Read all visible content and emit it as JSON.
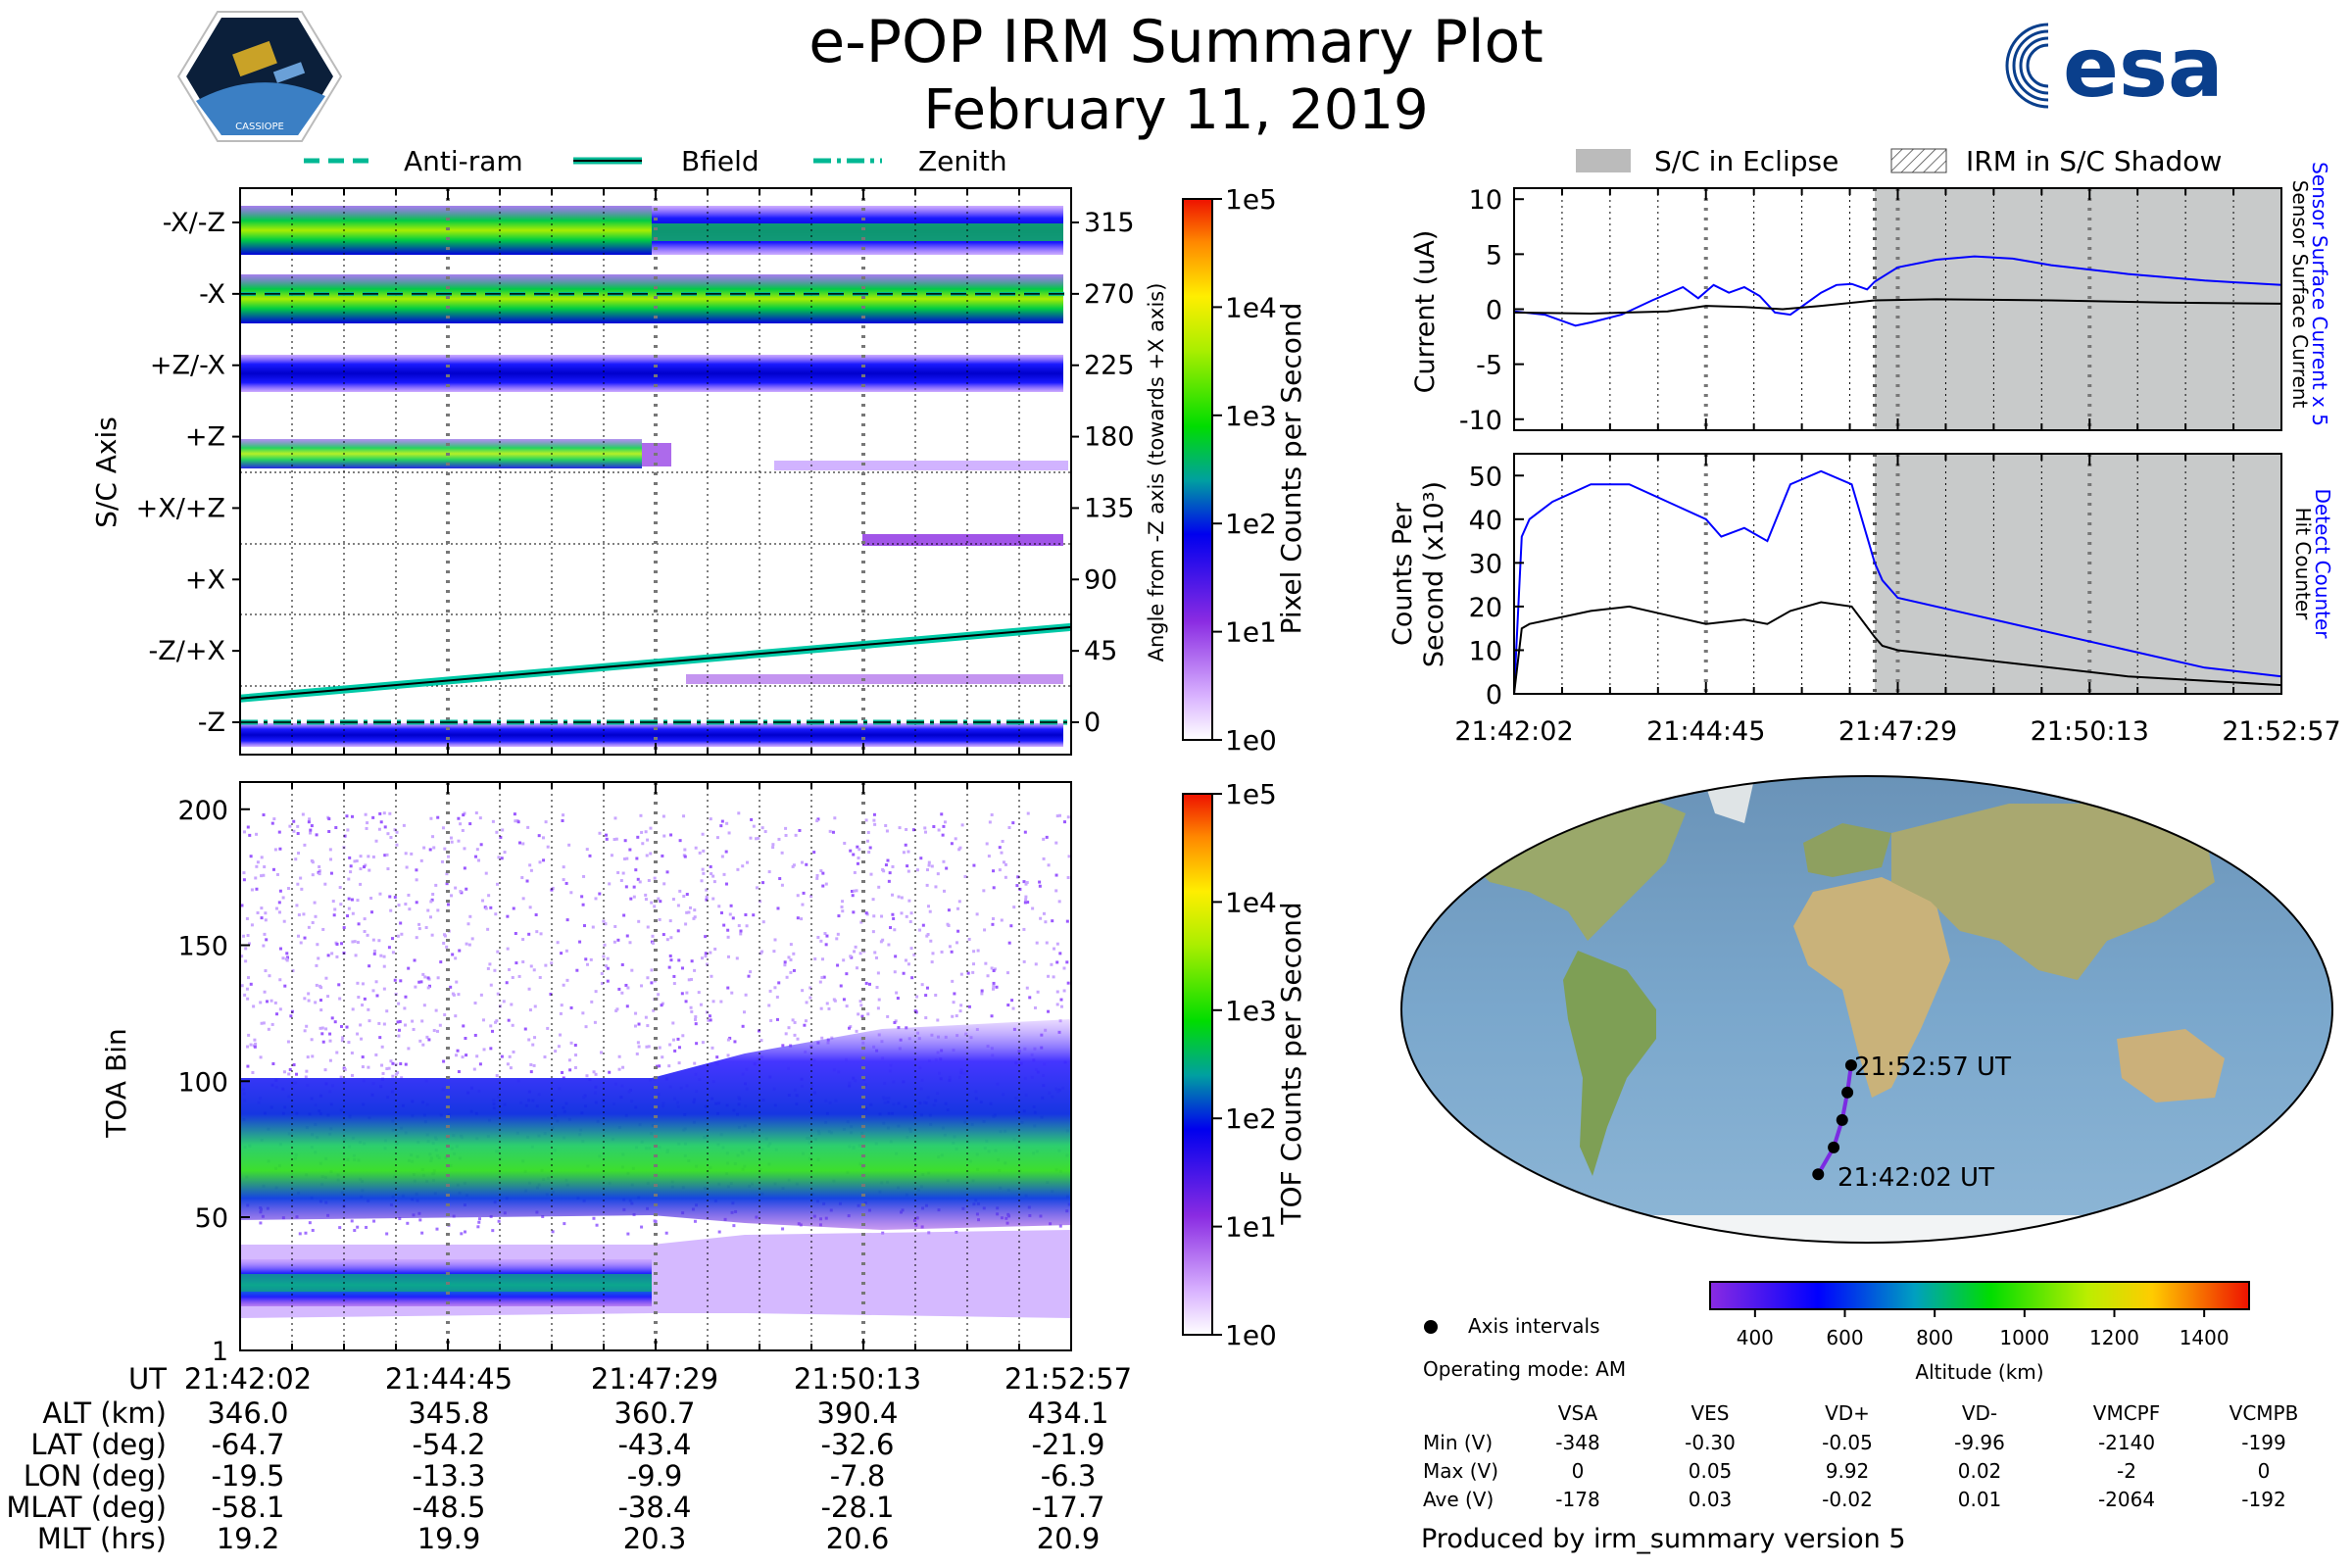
{
  "title": "e-POP IRM Summary Plot",
  "date": "February 11, 2019",
  "logos": {
    "mission": "CASSIOPE",
    "agency": "esa"
  },
  "legend_top_left": [
    {
      "label": "Anti-ram",
      "style": "dashed",
      "color": "#00b894"
    },
    {
      "label": "Bfield",
      "style": "solid",
      "color": "#00b894"
    },
    {
      "label": "Zenith",
      "style": "dashdot",
      "color": "#00b894"
    }
  ],
  "legend_top_right": [
    {
      "label": "S/C in Eclipse",
      "style": "gray-fill"
    },
    {
      "label": "IRM in S/C Shadow",
      "style": "hatch"
    }
  ],
  "time_ticks": [
    "21:42:02",
    "21:44:45",
    "21:47:29",
    "21:50:13",
    "21:52:57"
  ],
  "chart_data": [
    {
      "id": "sc-axis-spectrogram",
      "type": "heatmap",
      "ylabel": "S/C Axis",
      "y_categories": [
        "-X/-Z",
        "-X",
        "+Z/-X",
        "+Z",
        "+X/+Z",
        "+X",
        "-Z/+X",
        "-Z"
      ],
      "y2label": "Angle from -Z axis (towards +X axis)",
      "y2_ticks": [
        315,
        270,
        225,
        180,
        135,
        90,
        45,
        0
      ],
      "colorbar_label": "Pixel Counts per Second",
      "colorbar_ticks": [
        "1e0",
        "1e1",
        "1e2",
        "1e3",
        "1e4",
        "1e5"
      ],
      "bfield_angle_start": 15,
      "bfield_angle_end": 60,
      "antiram_angle": 270,
      "zenith_angle": 0
    },
    {
      "id": "toa-spectrogram",
      "type": "heatmap",
      "ylabel": "TOA Bin",
      "y_ticks": [
        1,
        50,
        100,
        150,
        200
      ],
      "ylim": [
        1,
        210
      ],
      "colorbar_label": "TOF Counts per Second",
      "colorbar_ticks": [
        "1e0",
        "1e1",
        "1e2",
        "1e3",
        "1e4",
        "1e5"
      ]
    },
    {
      "id": "current-plot",
      "type": "line",
      "ylabel": "Current (uA)",
      "ylim": [
        -11,
        11
      ],
      "y_ticks": [
        10,
        5,
        0,
        -5,
        -10
      ],
      "eclipse_start_frac": 0.47,
      "right_labels": [
        "Sensor Surface Current x 5",
        "Sensor Surface Current"
      ],
      "series": [
        {
          "name": "Sensor Surface Current x 5",
          "color": "#0000ff",
          "x": [
            0,
            0.04,
            0.08,
            0.1,
            0.14,
            0.18,
            0.22,
            0.24,
            0.26,
            0.28,
            0.3,
            0.32,
            0.34,
            0.36,
            0.38,
            0.4,
            0.42,
            0.44,
            0.46,
            0.47,
            0.5,
            0.55,
            0.6,
            0.65,
            0.7,
            0.8,
            0.9,
            1.0
          ],
          "values": [
            -0.2,
            -0.5,
            -1.5,
            -1.2,
            -0.5,
            0.8,
            2.0,
            1.0,
            2.2,
            1.5,
            2.0,
            1.2,
            -0.3,
            -0.5,
            0.5,
            1.5,
            2.2,
            2.3,
            1.8,
            2.5,
            3.8,
            4.5,
            4.8,
            4.6,
            4.0,
            3.2,
            2.6,
            2.2
          ]
        },
        {
          "name": "Sensor Surface Current",
          "color": "#000000",
          "x": [
            0,
            0.1,
            0.2,
            0.25,
            0.3,
            0.35,
            0.4,
            0.47,
            0.55,
            0.7,
            0.85,
            1.0
          ],
          "values": [
            -0.3,
            -0.4,
            -0.2,
            0.3,
            0.2,
            0.0,
            0.3,
            0.8,
            0.9,
            0.8,
            0.6,
            0.5
          ]
        }
      ]
    },
    {
      "id": "counts-plot",
      "type": "line",
      "ylabel": "Counts Per Second (x10³)",
      "ylim": [
        0,
        55
      ],
      "y_ticks": [
        0,
        10,
        20,
        30,
        40,
        50
      ],
      "eclipse_start_frac": 0.47,
      "right_labels": [
        "Detect Counter",
        "Hit Counter"
      ],
      "series": [
        {
          "name": "Detect Counter",
          "color": "#0000ff",
          "x": [
            0,
            0.01,
            0.02,
            0.05,
            0.1,
            0.15,
            0.2,
            0.25,
            0.27,
            0.3,
            0.33,
            0.36,
            0.4,
            0.44,
            0.47,
            0.48,
            0.5,
            0.6,
            0.7,
            0.8,
            0.9,
            1.0
          ],
          "values": [
            0,
            36,
            40,
            44,
            48,
            48,
            44,
            40,
            36,
            38,
            35,
            48,
            51,
            48,
            30,
            26,
            22,
            18,
            14,
            10,
            6,
            4
          ]
        },
        {
          "name": "Hit Counter",
          "color": "#000000",
          "x": [
            0,
            0.01,
            0.02,
            0.1,
            0.15,
            0.2,
            0.25,
            0.3,
            0.33,
            0.36,
            0.4,
            0.44,
            0.47,
            0.48,
            0.5,
            0.6,
            0.7,
            0.8,
            0.9,
            1.0
          ],
          "values": [
            0,
            15,
            16,
            19,
            20,
            18,
            16,
            17,
            16,
            19,
            21,
            20,
            13,
            11,
            10,
            8,
            6,
            4,
            3,
            2
          ]
        }
      ]
    },
    {
      "id": "orbit-map",
      "type": "scatter",
      "labels": [
        "21:52:57 UT",
        "21:42:02 UT"
      ],
      "track_lon": [
        -19.5,
        -13.3,
        -9.9,
        -7.8,
        -6.3
      ],
      "track_lat": [
        -64.7,
        -54.2,
        -43.4,
        -32.6,
        -21.9
      ],
      "altitude_colorbar_label": "Altitude (km)",
      "altitude_ticks": [
        400,
        600,
        800,
        1000,
        1200,
        1400
      ],
      "altitude_range": [
        300,
        1500
      ]
    }
  ],
  "ephemeris": {
    "ut_label": "UT",
    "rows": [
      {
        "label": "ALT (km)",
        "values": [
          "346.0",
          "345.8",
          "360.7",
          "390.4",
          "434.1"
        ]
      },
      {
        "label": "LAT (deg)",
        "values": [
          "-64.7",
          "-54.2",
          "-43.4",
          "-32.6",
          "-21.9"
        ]
      },
      {
        "label": "LON (deg)",
        "values": [
          "-19.5",
          "-13.3",
          "-9.9",
          "-7.8",
          "-6.3"
        ]
      },
      {
        "label": "MLAT (deg)",
        "values": [
          "-58.1",
          "-48.5",
          "-38.4",
          "-28.1",
          "-17.7"
        ]
      },
      {
        "label": "MLT (hrs)",
        "values": [
          "19.2",
          "19.9",
          "20.3",
          "20.6",
          "20.9"
        ]
      }
    ]
  },
  "info": {
    "axis_intervals": "Axis intervals",
    "operating_mode": "Operating mode: AM",
    "produced_by": "Produced by irm_summary version 5"
  },
  "voltages": {
    "columns": [
      "VSA",
      "VES",
      "VD+",
      "VD-",
      "VMCPF",
      "VCMPB"
    ],
    "rows": [
      {
        "label": "Min (V)",
        "values": [
          "-348",
          "-0.30",
          "-0.05",
          "-9.96",
          "-2140",
          "-199"
        ]
      },
      {
        "label": "Max (V)",
        "values": [
          "0",
          "0.05",
          "9.92",
          "0.02",
          "-2",
          "0"
        ]
      },
      {
        "label": "Ave (V)",
        "values": [
          "-178",
          "0.03",
          "-0.02",
          "0.01",
          "-2064",
          "-192"
        ]
      }
    ]
  }
}
